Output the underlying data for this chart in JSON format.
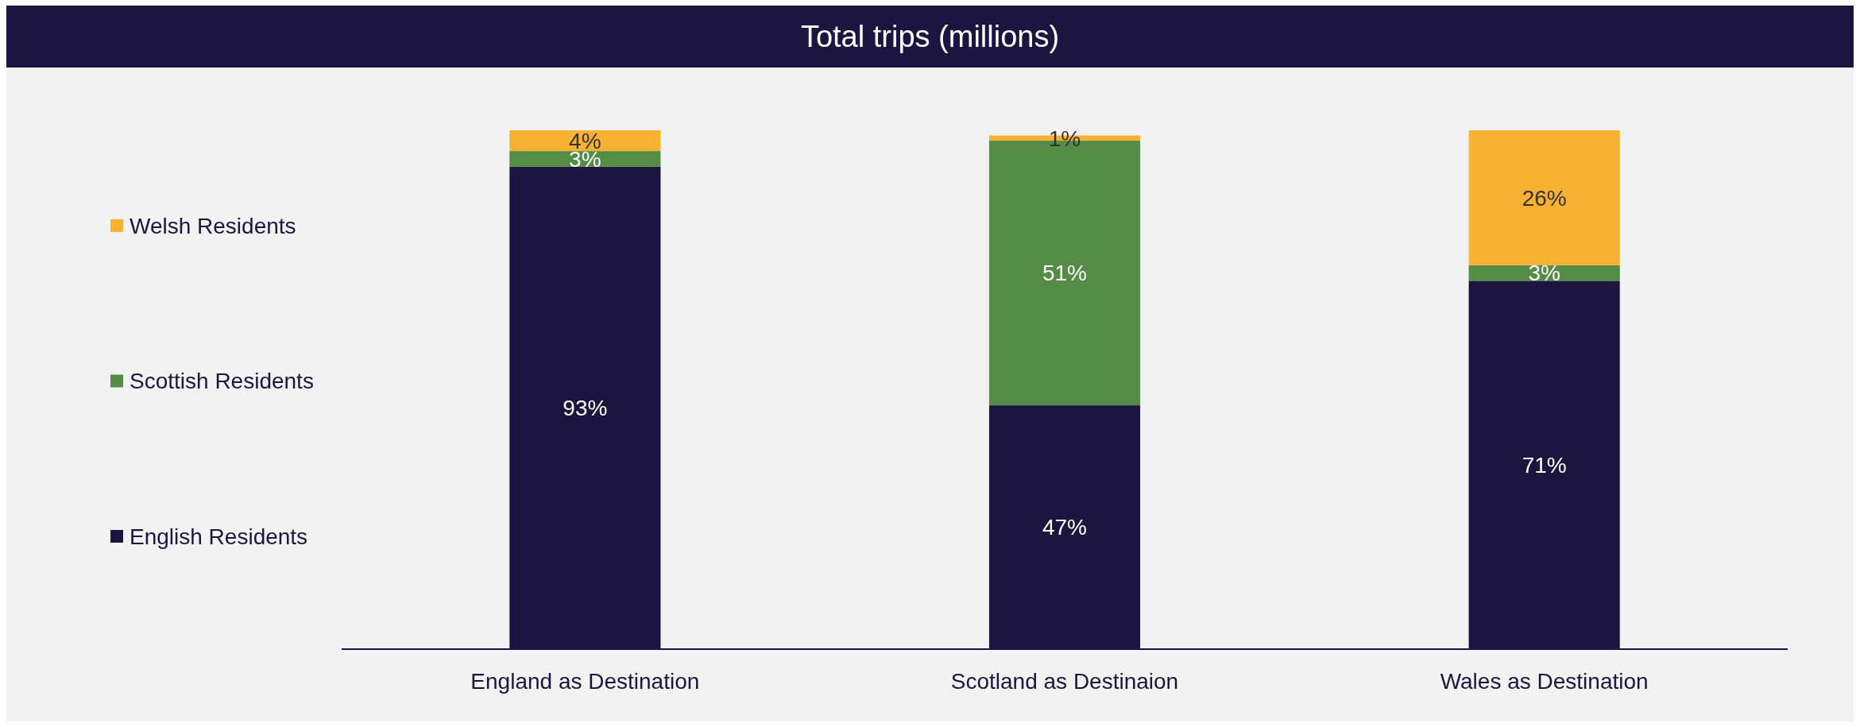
{
  "chart_data": {
    "type": "bar",
    "title": "Total trips (millions)",
    "categories": [
      "England as Destination",
      "Scotland as Destinaion",
      "Wales as Destination"
    ],
    "stacked": true,
    "legend": "left",
    "series": [
      {
        "name": "English Residents",
        "color": "#1c1540",
        "values": [
          93,
          47,
          71
        ],
        "value_labels": [
          "93%",
          "47%",
          "71%"
        ]
      },
      {
        "name": "Scottish Residents",
        "color": "#548b45",
        "values": [
          3,
          51,
          3
        ],
        "value_labels": [
          "3%",
          "51%",
          "3%"
        ]
      },
      {
        "name": "Welsh Residents",
        "color": "#f8b133",
        "values": [
          4,
          1,
          26
        ],
        "value_labels": [
          "4%",
          "1%",
          "26%"
        ]
      }
    ]
  }
}
